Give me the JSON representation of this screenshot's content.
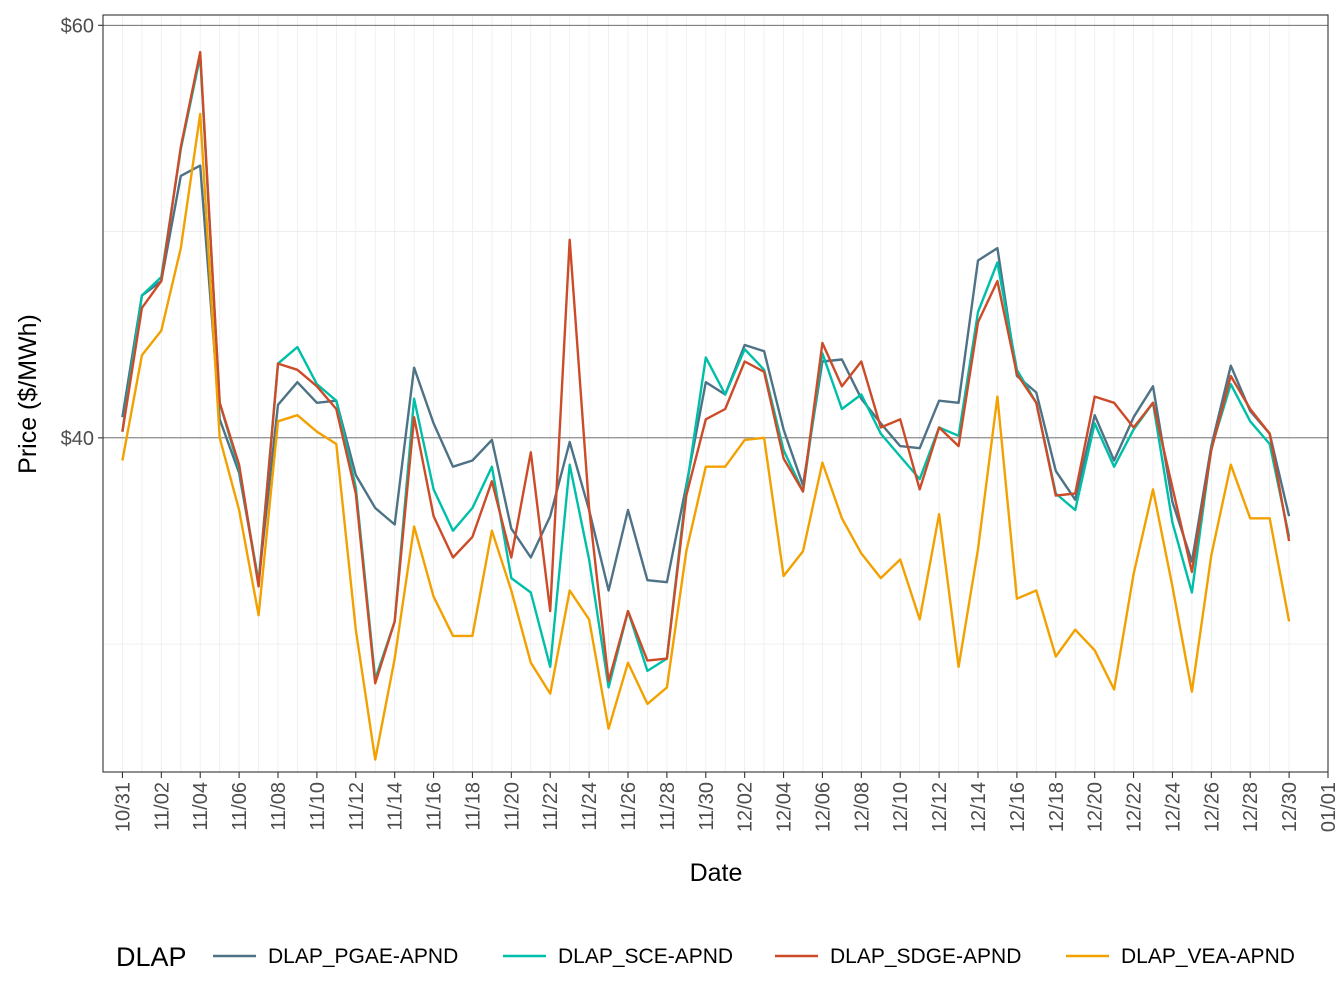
{
  "chart_data": {
    "type": "line",
    "title": "",
    "xlabel": "Date",
    "ylabel": "Price ($/MWh)",
    "y_tick_labels": [
      "$40",
      "$60"
    ],
    "y_ticks": [
      40,
      60
    ],
    "ylim": [
      23.8,
      60.5
    ],
    "x_range": [
      "10/30",
      "01/01"
    ],
    "x_tick_labels": [
      "10/31",
      "11/02",
      "11/04",
      "11/06",
      "11/08",
      "11/10",
      "11/12",
      "11/14",
      "11/16",
      "11/18",
      "11/20",
      "11/22",
      "11/24",
      "11/26",
      "11/28",
      "11/30",
      "12/02",
      "12/04",
      "12/06",
      "12/08",
      "12/10",
      "12/12",
      "12/14",
      "12/16",
      "12/18",
      "12/20",
      "12/22",
      "12/24",
      "12/26",
      "12/28",
      "12/30",
      "01/01"
    ],
    "grid": true,
    "legend": {
      "title": "DLAP",
      "position": "bottom"
    },
    "dates": [
      "10/31",
      "11/01",
      "11/02",
      "11/03",
      "11/04",
      "11/05",
      "11/06",
      "11/07",
      "11/08",
      "11/09",
      "11/10",
      "11/11",
      "11/12",
      "11/13",
      "11/14",
      "11/15",
      "11/16",
      "11/17",
      "11/18",
      "11/19",
      "11/20",
      "11/21",
      "11/22",
      "11/23",
      "11/24",
      "11/25",
      "11/26",
      "11/27",
      "11/28",
      "11/29",
      "11/30",
      "12/01",
      "12/02",
      "12/03",
      "12/04",
      "12/05",
      "12/06",
      "12/07",
      "12/08",
      "12/09",
      "12/10",
      "12/11",
      "12/12",
      "12/13",
      "12/14",
      "12/15",
      "12/16",
      "12/17",
      "12/18",
      "12/19",
      "12/20",
      "12/21",
      "12/22",
      "12/23",
      "12/24",
      "12/25",
      "12/26",
      "12/27",
      "12/28",
      "12/29",
      "12/30"
    ],
    "series": [
      {
        "name": "DLAP_PGAE-APND",
        "color": "#4e7286",
        "values": [
          41.0,
          46.9,
          47.6,
          52.7,
          53.2,
          40.9,
          38.3,
          33.0,
          41.6,
          42.7,
          41.7,
          41.8,
          38.2,
          36.6,
          35.8,
          43.4,
          40.7,
          38.6,
          38.9,
          39.9,
          35.6,
          34.2,
          36.2,
          39.8,
          36.5,
          32.6,
          36.5,
          33.1,
          33.0,
          37.7,
          42.7,
          42.1,
          44.5,
          44.2,
          40.4,
          37.7,
          43.7,
          43.8,
          41.9,
          40.7,
          39.6,
          39.5,
          41.8,
          41.7,
          48.6,
          49.2,
          43.0,
          42.2,
          38.4,
          37.0,
          41.1,
          38.9,
          41.0,
          42.5,
          36.9,
          34.0,
          39.6,
          43.5,
          41.3,
          40.2,
          36.2
        ]
      },
      {
        "name": "DLAP_SCE-APND",
        "color": "#00bfa9",
        "values": [
          40.3,
          46.9,
          47.8,
          54.0,
          58.5,
          41.7,
          38.5,
          33.0,
          43.6,
          44.4,
          42.6,
          41.8,
          37.6,
          28.3,
          31.1,
          41.9,
          37.5,
          35.5,
          36.6,
          38.6,
          33.2,
          32.5,
          28.9,
          38.7,
          34.1,
          27.9,
          31.6,
          28.7,
          29.3,
          37.5,
          43.9,
          42.1,
          44.3,
          43.3,
          39.4,
          37.4,
          44.1,
          41.4,
          42.1,
          40.2,
          39.1,
          38.0,
          40.5,
          40.1,
          46.1,
          48.5,
          43.3,
          41.7,
          37.3,
          36.5,
          40.7,
          38.6,
          40.4,
          41.7,
          35.9,
          32.5,
          39.5,
          42.6,
          40.8,
          39.7,
          35.2
        ]
      },
      {
        "name": "DLAP_SDGE-APND",
        "color": "#cc4b29",
        "values": [
          40.3,
          46.3,
          47.6,
          54.1,
          58.7,
          41.7,
          38.7,
          32.8,
          43.6,
          43.3,
          42.5,
          41.4,
          37.3,
          28.1,
          31.1,
          41.0,
          36.2,
          34.2,
          35.2,
          37.9,
          34.2,
          39.3,
          31.6,
          49.6,
          36.6,
          28.2,
          31.6,
          29.2,
          29.3,
          37.2,
          40.9,
          41.4,
          43.7,
          43.2,
          39.0,
          37.4,
          44.6,
          42.5,
          43.7,
          40.5,
          40.9,
          37.5,
          40.5,
          39.6,
          45.6,
          47.6,
          43.1,
          41.7,
          37.2,
          37.3,
          42.0,
          41.7,
          40.5,
          41.7,
          37.6,
          33.5,
          39.4,
          43.0,
          41.4,
          40.2,
          35.0
        ]
      },
      {
        "name": "DLAP_VEA-APND",
        "color": "#f2a100",
        "values": [
          38.9,
          44.0,
          45.2,
          49.2,
          55.7,
          40.0,
          36.5,
          31.4,
          40.8,
          41.1,
          40.3,
          39.7,
          30.7,
          24.4,
          29.3,
          35.7,
          32.3,
          30.4,
          30.4,
          35.5,
          32.6,
          29.1,
          27.6,
          32.6,
          31.2,
          25.9,
          29.1,
          27.1,
          27.9,
          34.5,
          38.6,
          38.6,
          39.9,
          40.0,
          33.3,
          34.5,
          38.8,
          36.1,
          34.4,
          33.2,
          34.1,
          31.2,
          36.3,
          28.9,
          34.6,
          42.0,
          32.2,
          32.6,
          29.4,
          30.7,
          29.7,
          27.8,
          33.4,
          37.5,
          32.8,
          27.7,
          34.3,
          38.7,
          36.1,
          36.1,
          31.1
        ]
      }
    ]
  }
}
